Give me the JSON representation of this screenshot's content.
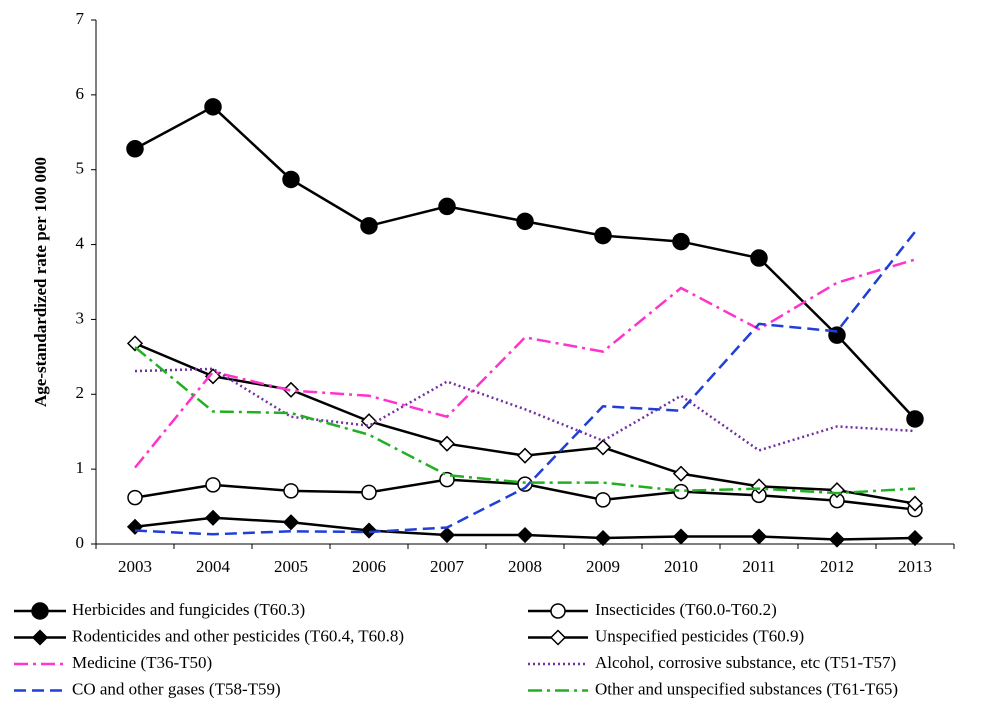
{
  "chart_data": {
    "type": "line",
    "y_label": "Age-standardized rate per 100 000",
    "categories": [
      "2003",
      "2004",
      "2005",
      "2006",
      "2007",
      "2008",
      "2009",
      "2010",
      "2011",
      "2012",
      "2013"
    ],
    "ylim": [
      0,
      7
    ],
    "yticks": [
      0,
      1,
      2,
      3,
      4,
      5,
      6,
      7
    ],
    "grid": false,
    "series": [
      {
        "name": "Herbicides and fungicides (T60.3)",
        "color": "#000000",
        "linestyle": "solid",
        "marker": "filled-circle",
        "values": [
          5.28,
          5.84,
          4.87,
          4.25,
          4.51,
          4.31,
          4.12,
          4.04,
          3.82,
          2.79,
          1.67
        ]
      },
      {
        "name": "Insecticides (T60.0-T60.2)",
        "color": "#000000",
        "linestyle": "solid",
        "marker": "open-circle",
        "values": [
          0.62,
          0.79,
          0.71,
          0.69,
          0.86,
          0.8,
          0.59,
          0.7,
          0.65,
          0.58,
          0.46
        ]
      },
      {
        "name": "Rodenticides and other pesticides  (T60.4, T60.8)",
        "color": "#000000",
        "linestyle": "solid",
        "marker": "filled-diamond",
        "values": [
          0.23,
          0.35,
          0.29,
          0.18,
          0.12,
          0.12,
          0.08,
          0.1,
          0.1,
          0.06,
          0.08
        ]
      },
      {
        "name": "Unspecified pesticides (T60.9)",
        "color": "#000000",
        "linestyle": "solid",
        "marker": "open-diamond",
        "values": [
          2.68,
          2.24,
          2.06,
          1.64,
          1.34,
          1.18,
          1.29,
          0.94,
          0.77,
          0.72,
          0.54
        ]
      },
      {
        "name": "Medicine (T36-T50)",
        "color": "#ff33cc",
        "linestyle": "dashdot",
        "marker": "none",
        "values": [
          1.02,
          2.3,
          2.05,
          1.98,
          1.7,
          2.76,
          2.57,
          3.42,
          2.87,
          3.49,
          3.8
        ]
      },
      {
        "name": "Alcohol, corrosive substance, etc (T51-T57)",
        "color": "#7030a0",
        "linestyle": "dotted",
        "marker": "none",
        "values": [
          2.31,
          2.34,
          1.7,
          1.58,
          2.17,
          1.8,
          1.38,
          1.98,
          1.25,
          1.57,
          1.51
        ]
      },
      {
        "name": "CO and other gases (T58-T59)",
        "color": "#1f3fd6",
        "linestyle": "dashed",
        "marker": "none",
        "values": [
          0.18,
          0.13,
          0.17,
          0.16,
          0.22,
          0.75,
          1.84,
          1.78,
          2.94,
          2.84,
          4.17
        ]
      },
      {
        "name": "Other and unspecified substances (T61-T65)",
        "color": "#22b022",
        "linestyle": "dashdot",
        "marker": "none",
        "values": [
          2.63,
          1.77,
          1.75,
          1.46,
          0.92,
          0.82,
          0.82,
          0.71,
          0.74,
          0.68,
          0.74
        ]
      }
    ]
  }
}
